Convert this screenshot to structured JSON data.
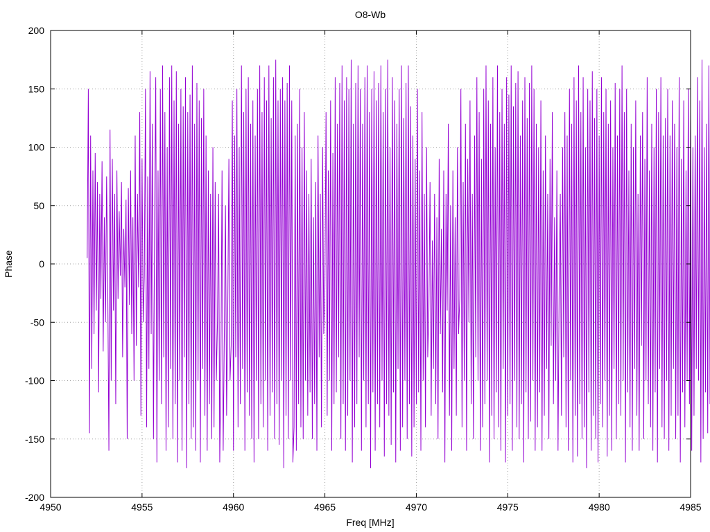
{
  "chart_data": {
    "type": "line",
    "title": "O8-Wb",
    "xlabel": "Freq [MHz]",
    "ylabel": "Phase",
    "xlim": [
      4950,
      4985
    ],
    "ylim": [
      -200,
      200
    ],
    "xticks": [
      4950,
      4955,
      4960,
      4965,
      4970,
      4975,
      4980,
      4985
    ],
    "yticks": [
      -200,
      -150,
      -100,
      -50,
      0,
      50,
      100,
      150,
      200
    ],
    "grid": true,
    "series": [
      {
        "color": "#9400d3",
        "x_start": 4952.0,
        "x_step": 0.0625,
        "values": [
          5,
          150,
          -145,
          110,
          -90,
          80,
          -60,
          95,
          -40,
          70,
          -110,
          60,
          -30,
          88,
          -75,
          40,
          -50,
          75,
          -20,
          -160,
          115,
          -100,
          90,
          -40,
          60,
          -120,
          80,
          -30,
          45,
          -10,
          70,
          -80,
          30,
          -20,
          55,
          -150,
          65,
          -35,
          80,
          -60,
          40,
          -100,
          110,
          -70,
          60,
          -20,
          130,
          -130,
          90,
          -50,
          -10,
          150,
          -140,
          75,
          -90,
          165,
          -60,
          120,
          -150,
          40,
          160,
          -170,
          80,
          -100,
          150,
          -120,
          170,
          -80,
          130,
          -160,
          100,
          -140,
          160,
          -90,
          170,
          -150,
          140,
          -120,
          165,
          -170,
          120,
          -100,
          150,
          -160,
          135,
          -80,
          160,
          -175,
          130,
          -120,
          145,
          -150,
          170,
          -140,
          120,
          -160,
          155,
          -100,
          140,
          -170,
          125,
          -90,
          150,
          -130,
          110,
          -160,
          80,
          -120,
          60,
          -150,
          100,
          -140,
          70,
          -100,
          -50,
          60,
          -170,
          -90,
          80,
          -160,
          -60,
          50,
          -130,
          -40,
          90,
          -100,
          -70,
          140,
          -160,
          110,
          -80,
          150,
          -140,
          100,
          -120,
          170,
          -90,
          130,
          -160,
          150,
          -110,
          160,
          -130,
          120,
          -150,
          140,
          -170,
          110,
          -100,
          150,
          -150,
          170,
          -120,
          130,
          -140,
          160,
          -100,
          140,
          -160,
          170,
          -130,
          125,
          -110,
          160,
          -150,
          175,
          -120,
          140,
          -155,
          150,
          -100,
          160,
          -175,
          140,
          -130,
          155,
          -150,
          170,
          -100,
          140,
          -170,
          -140,
          110,
          -160,
          120,
          -120,
          150,
          -140,
          100,
          -150,
          130,
          -100,
          80,
          -130,
          60,
          -110,
          90,
          -150,
          40,
          -120,
          70,
          -160,
          110,
          -80,
          60,
          -140,
          100,
          -60,
          -20,
          130,
          -130,
          80,
          -100,
          140,
          -160,
          95,
          -120,
          160,
          -110,
          120,
          -80,
          155,
          -150,
          170,
          -120,
          140,
          -160,
          160,
          -130,
          150,
          -100,
          175,
          -170,
          120,
          -140,
          155,
          -120,
          170,
          -80,
          150,
          -160,
          120,
          -100,
          160,
          -140,
          170,
          -120,
          130,
          -175,
          150,
          -110,
          165,
          -160,
          140,
          -120,
          155,
          -140,
          170,
          -100,
          130,
          -165,
          150,
          -120,
          175,
          -130,
          100,
          -155,
          160,
          -110,
          140,
          -170,
          120,
          -90,
          150,
          -160,
          170,
          -140,
          125,
          -100,
          155,
          -150,
          170,
          -120,
          135,
          -165,
          110,
          -140,
          90,
          -120,
          150,
          -110,
          80,
          -160,
          130,
          -100,
          60,
          -140,
          100,
          -80,
          -40,
          70,
          -130,
          20,
          -90,
          60,
          -120,
          40,
          -150,
          90,
          -60,
          30,
          -110,
          80,
          -170,
          60,
          -40,
          120,
          -130,
          50,
          -160,
          80,
          -90,
          40,
          -130,
          100,
          -60,
          -30,
          150,
          -140,
          70,
          -100,
          120,
          -160,
          90,
          -50,
          140,
          -120,
          60,
          -150,
          110,
          -80,
          160,
          -100,
          130,
          -160,
          90,
          -140,
          150,
          -120,
          170,
          -100,
          140,
          -170,
          120,
          -130,
          160,
          -150,
          100,
          -110,
          170,
          -140,
          130,
          -160,
          150,
          -90,
          120,
          -170,
          160,
          -130,
          145,
          -120,
          170,
          -160,
          135,
          -100,
          155,
          -140,
          165,
          -150,
          110,
          -120,
          140,
          -170,
          160,
          -110,
          125,
          -150,
          155,
          -135,
          170,
          -100,
          150,
          -160,
          120,
          -140,
          100,
          -110,
          140,
          -160,
          80,
          -130,
          110,
          -90,
          60,
          -150,
          90,
          -70,
          130,
          -120,
          40,
          -100,
          80,
          -160,
          -20,
          60,
          -130,
          100,
          -80,
          130,
          -140,
          110,
          -160,
          150,
          -100,
          120,
          -170,
          160,
          -130,
          140,
          -165,
          170,
          -120,
          130,
          -150,
          160,
          -140,
          100,
          -175,
          150,
          -110,
          140,
          -160,
          165,
          -130,
          125,
          -150,
          150,
          -170,
          110,
          -120,
          160,
          -140,
          130,
          -100,
          150,
          -165,
          120,
          -130,
          140,
          -160,
          100,
          -90,
          155,
          -150,
          110,
          -120,
          150,
          -130,
          170,
          -100,
          130,
          -170,
          150,
          -110,
          80,
          -140,
          120,
          -160,
          100,
          -90,
          140,
          -130,
          60,
          -160,
          110,
          -70,
          130,
          -150,
          90,
          -100,
          160,
          -120,
          80,
          -140,
          120,
          -160,
          100,
          -110,
          150,
          -170,
          130,
          -90,
          160,
          -140,
          110,
          -150,
          125,
          -100,
          150,
          -160,
          110,
          -130,
          140,
          -90,
          120,
          -150,
          100,
          -130,
          160,
          -170,
          90,
          -110,
          140,
          -140,
          80,
          -100,
          150,
          -120,
          130,
          -160,
          100,
          -130,
          110,
          -90,
          160,
          -100,
          140,
          -170,
          175,
          -150,
          100,
          -110,
          120,
          -145,
          170,
          -120,
          180
        ]
      }
    ]
  }
}
